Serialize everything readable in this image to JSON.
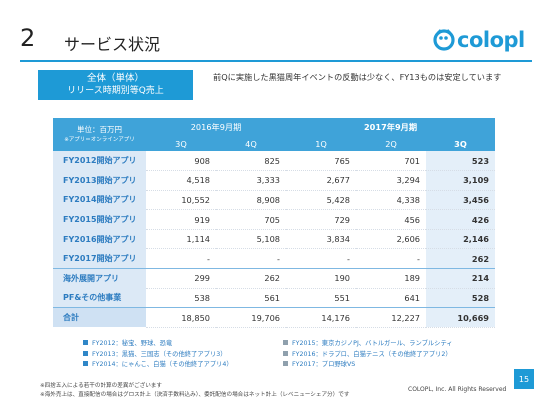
{
  "header": {
    "section_number": "2",
    "title": "サービス状況",
    "logo_text": "colopl"
  },
  "badge": {
    "line1": "全体（単体）",
    "line2": "リリース時期別等Q売上"
  },
  "summary": "前Qに実施した黒猫周年イベントの反動は少なく、FY13ものは安定しています",
  "table": {
    "unit_label": "単位：百万円",
    "unit_note": "※アプリ＝オンラインアプリ",
    "year_2016": "2016年9月期",
    "year_2017": "2017年9月期",
    "quarters": [
      "3Q",
      "4Q",
      "1Q",
      "2Q",
      "3Q"
    ],
    "rows": [
      {
        "label": "FY2012開始アプリ",
        "values": [
          "908",
          "825",
          "765",
          "701",
          "523"
        ]
      },
      {
        "label": "FY2013開始アプリ",
        "values": [
          "4,518",
          "3,333",
          "2,677",
          "3,294",
          "3,109"
        ]
      },
      {
        "label": "FY2014開始アプリ",
        "values": [
          "10,552",
          "8,908",
          "5,428",
          "4,338",
          "3,456"
        ]
      },
      {
        "label": "FY2015開始アプリ",
        "values": [
          "919",
          "705",
          "729",
          "456",
          "426"
        ]
      },
      {
        "label": "FY2016開始アプリ",
        "values": [
          "1,114",
          "5,108",
          "3,834",
          "2,606",
          "2,146"
        ]
      },
      {
        "label": "FY2017開始アプリ",
        "values": [
          "-",
          "-",
          "-",
          "-",
          "262"
        ]
      },
      {
        "label": "海外展開アプリ",
        "values": [
          "299",
          "262",
          "190",
          "189",
          "214"
        ]
      },
      {
        "label": "PF&その他事業",
        "values": [
          "538",
          "561",
          "551",
          "641",
          "528"
        ]
      },
      {
        "label": "合計",
        "values": [
          "18,850",
          "19,706",
          "14,176",
          "12,227",
          "10,669"
        ]
      }
    ]
  },
  "legend": [
    {
      "text": "FY2012：秘宝、野球、恐竜",
      "color": "#2f86c7"
    },
    {
      "text": "FY2013：黒猫、三国志（その他終了アプリ3）",
      "color": "#2f86c7"
    },
    {
      "text": "FY2014：にゃんこ、白猫（その他終了アプリ4）",
      "color": "#2f86c7"
    },
    {
      "text": "FY2015：東京カジノPJ、バトルガール、ランブルシティ",
      "color": "#8fa0ad"
    },
    {
      "text": "FY2016：ドラプロ、白猫テニス（その他終了アプリ2）",
      "color": "#8fa0ad"
    },
    {
      "text": "FY2017：プロ野球VS",
      "color": "#8fa0ad"
    }
  ],
  "footnotes": [
    "※四捨五入による若干の計算の差異がございます",
    "※海外売上は、直接配信の場合はグロス計上（決済手数料込み）、委託配信の場合はネット計上（レベニューシェア分）です"
  ],
  "copyright": "COLOPL, Inc. All Rights Reserved",
  "page_number": "15",
  "colors": {
    "brand": "#1e9ad6",
    "header_fill": "#3fa3d9",
    "label_fill": "#dce9f6",
    "label_text": "#2d7cc0"
  }
}
